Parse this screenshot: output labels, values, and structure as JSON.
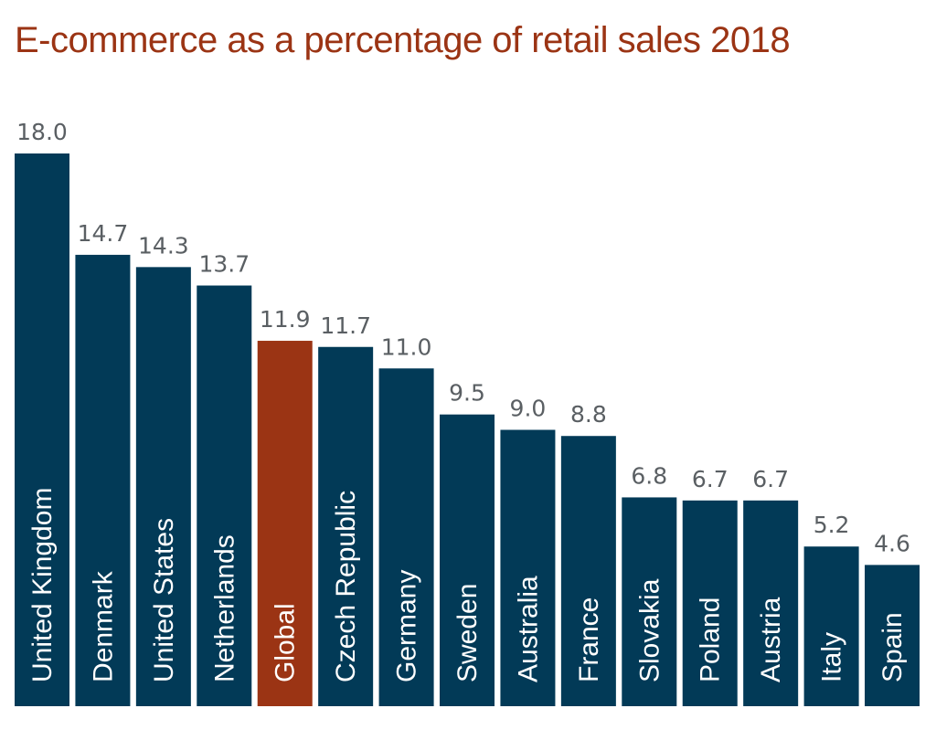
{
  "chart_data": {
    "type": "bar",
    "title": "E-commerce as a percentage of retail sales 2018",
    "categories": [
      "United Kingdom",
      "Denmark",
      "United States",
      "Netherlands",
      "Global",
      "Czech Republic",
      "Germany",
      "Sweden",
      "Australia",
      "France",
      "Slovakia",
      "Poland",
      "Austria",
      "Italy",
      "Spain"
    ],
    "values": [
      18.0,
      14.7,
      14.3,
      13.7,
      11.9,
      11.7,
      11.0,
      9.5,
      9.0,
      8.8,
      6.8,
      6.7,
      6.7,
      5.2,
      4.6
    ],
    "value_labels": [
      "18.0",
      "14.7",
      "14.3",
      "13.7",
      "11.9",
      "11.7",
      "11.0",
      "9.5",
      "9.0",
      "8.8",
      "6.8",
      "6.7",
      "6.7",
      "5.2",
      "4.6"
    ],
    "highlight_category": "Global",
    "xlabel": "",
    "ylabel": "",
    "ylim": [
      0,
      18.0
    ],
    "grid": false,
    "legend": "none",
    "colors": {
      "bar": "#023a57",
      "highlight": "#9b3414",
      "title": "#9b3414",
      "value_label": "#5a5f63",
      "category_label": "#ffffff"
    }
  }
}
